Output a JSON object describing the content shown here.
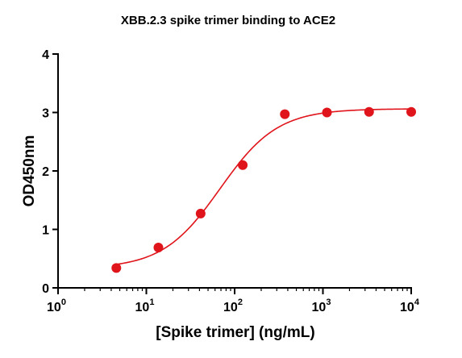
{
  "chart_data": {
    "type": "scatter",
    "title": "XBB.2.3 spike trimer binding to ACE2",
    "xlabel": "[Spike trimer] (ng/mL)",
    "ylabel": "OD450nm",
    "xscale": "log",
    "xlim": [
      1,
      10000
    ],
    "ylim": [
      0,
      4
    ],
    "x_ticks": [
      {
        "base": "10",
        "exp": "0"
      },
      {
        "base": "10",
        "exp": "1"
      },
      {
        "base": "10",
        "exp": "2"
      },
      {
        "base": "10",
        "exp": "3"
      },
      {
        "base": "10",
        "exp": "4"
      }
    ],
    "y_ticks": [
      "0",
      "1",
      "2",
      "3",
      "4"
    ],
    "grid": false,
    "color": "#e0141b",
    "series": [
      {
        "x": [
          4.57,
          13.7,
          41.2,
          123.5,
          370.4,
          1111,
          3333,
          10000
        ],
        "y": [
          0.34,
          0.69,
          1.27,
          2.1,
          2.97,
          3.0,
          3.01,
          3.01
        ],
        "fit": "four-parameter logistic"
      }
    ]
  }
}
